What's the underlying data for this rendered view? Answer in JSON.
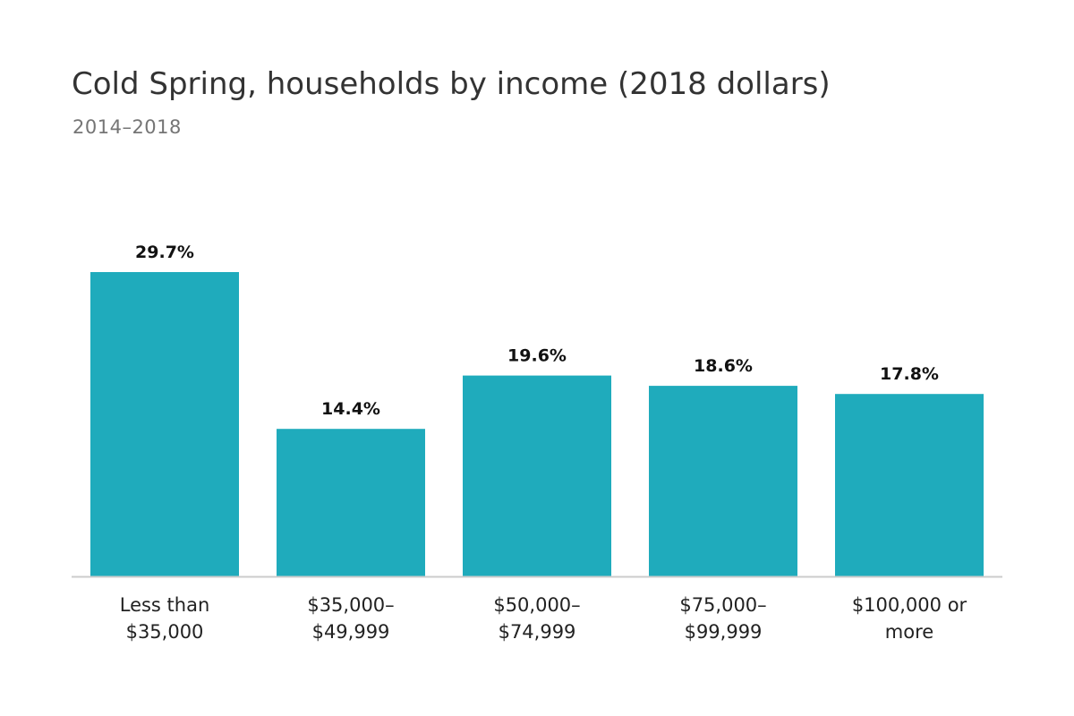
{
  "chart_data": {
    "type": "bar",
    "title": "Cold Spring, households by income (2018 dollars)",
    "subtitle": "2014–2018",
    "categories": [
      [
        "Less than",
        "$35,000"
      ],
      [
        "$35,000–",
        "$49,999"
      ],
      [
        "$50,000–",
        "$74,999"
      ],
      [
        "$75,000–",
        "$99,999"
      ],
      [
        "$100,000 or",
        "more"
      ]
    ],
    "values": [
      29.7,
      14.4,
      19.6,
      18.6,
      17.8
    ],
    "value_labels": [
      "29.7%",
      "14.4%",
      "19.6%",
      "18.6%",
      "17.8%"
    ],
    "xlabel": "",
    "ylabel": "",
    "ylim": [
      0,
      29.7
    ],
    "grid": false,
    "legend": "none",
    "colors": {
      "bar": "#1fabbc",
      "axis": "#cccccc"
    }
  }
}
